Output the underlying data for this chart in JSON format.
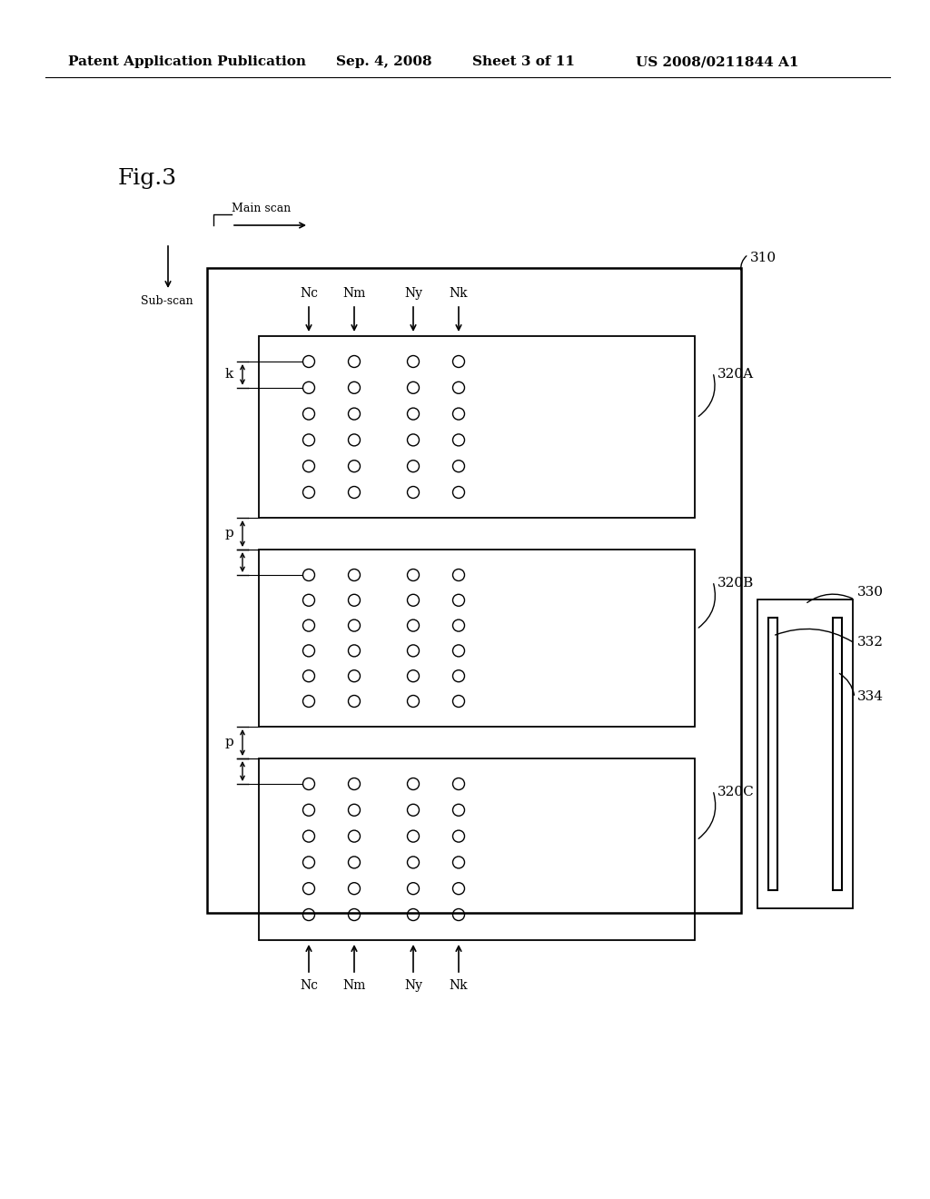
{
  "background_color": "#ffffff",
  "header_text": "Patent Application Publication",
  "header_date": "Sep. 4, 2008",
  "header_sheet": "Sheet 3 of 11",
  "header_patent": "US 2008/0211844 A1",
  "fig_label": "Fig.3",
  "label_310": "310",
  "label_320A": "320A",
  "label_320B": "320B",
  "label_320C": "320C",
  "label_330": "330",
  "label_332": "332",
  "label_334": "334",
  "label_k": "k",
  "label_p1": "p",
  "label_p2": "p",
  "col_labels_top": [
    "Nc",
    "Nm",
    "Ny",
    "Nk"
  ],
  "col_labels_bot": [
    "Nc",
    "Nm",
    "Ny",
    "Nk"
  ],
  "label_main_scan": "Main scan",
  "label_sub_scan": "Sub-scan",
  "nozzle_rows_A": 6,
  "nozzle_rows_B": 6,
  "nozzle_rows_C": 6
}
